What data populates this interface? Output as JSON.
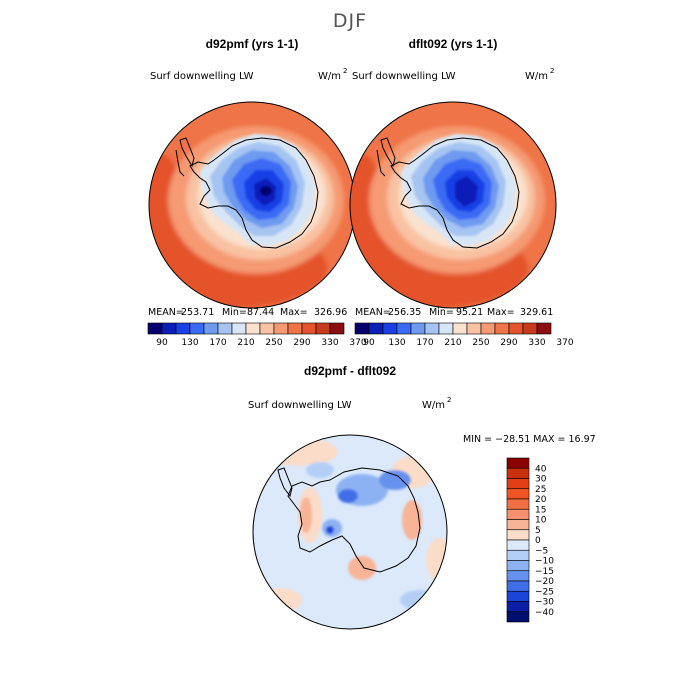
{
  "figure": {
    "title": "DJF",
    "diff_title": "d92pmf - dflt092",
    "diff_variable": "Surf downwelling LW",
    "diff_units_base": "W/m",
    "diff_units_exp": "2",
    "diff_stats": "MIN = −28.51 MAX =  16.97"
  },
  "chart_data": [
    {
      "type": "heatmap",
      "map": "south-polar-stereographic",
      "title": "d92pmf (yrs 1-1)",
      "variable": "Surf downwelling LW",
      "units_base": "W/m",
      "units_exp": "2",
      "stats": {
        "mean_label": "MEAN=",
        "mean": "253.71",
        "min_label": "Min=",
        "min": "87.44",
        "max_label": "Max=",
        "max": "326.96"
      },
      "colorbar_ticks": [
        "90",
        "130",
        "170",
        "210",
        "250",
        "290",
        "330",
        "370"
      ],
      "colorbar_colors": [
        "#06006e",
        "#0a1fb8",
        "#1840e6",
        "#3a6bf5",
        "#6e9af0",
        "#a6c4f2",
        "#d7e6f7",
        "#fae2cf",
        "#f9c2a3",
        "#f59a72",
        "#ef7447",
        "#e4532b",
        "#c83a1c",
        "#8c0d0d"
      ]
    },
    {
      "type": "heatmap",
      "map": "south-polar-stereographic",
      "title": "dflt092 (yrs 1-1)",
      "variable": "Surf downwelling LW",
      "units_base": "W/m",
      "units_exp": "2",
      "stats": {
        "mean_label": "MEAN=",
        "mean": "256.35",
        "min_label": "Min=",
        "min": "95.21",
        "max_label": "Max=",
        "max": "329.61"
      },
      "colorbar_ticks": [
        "90",
        "130",
        "170",
        "210",
        "250",
        "290",
        "330",
        "370"
      ],
      "colorbar_colors": [
        "#06006e",
        "#0a1fb8",
        "#1840e6",
        "#3a6bf5",
        "#6e9af0",
        "#a6c4f2",
        "#d7e6f7",
        "#fae2cf",
        "#f9c2a3",
        "#f59a72",
        "#ef7447",
        "#e4532b",
        "#c83a1c",
        "#8c0d0d"
      ]
    },
    {
      "type": "heatmap",
      "map": "south-polar-stereographic",
      "title": "d92pmf - dflt092",
      "variable": "Surf downwelling LW",
      "min": -28.51,
      "max": 16.97,
      "legend_levels": [
        "40",
        "30",
        "25",
        "20",
        "15",
        "10",
        "5",
        "0",
        "−5",
        "−10",
        "−15",
        "−20",
        "−25",
        "−30",
        "−40"
      ],
      "legend_colors": [
        "#8b0000",
        "#c9300e",
        "#e33f16",
        "#ef5524",
        "#f27144",
        "#f69070",
        "#f8b497",
        "#fbdcc9",
        "#dbe9fb",
        "#b4cff7",
        "#8db2f3",
        "#6691ee",
        "#3f6ee8",
        "#1b45d8",
        "#0a1ea6",
        "#030f6e"
      ]
    }
  ]
}
